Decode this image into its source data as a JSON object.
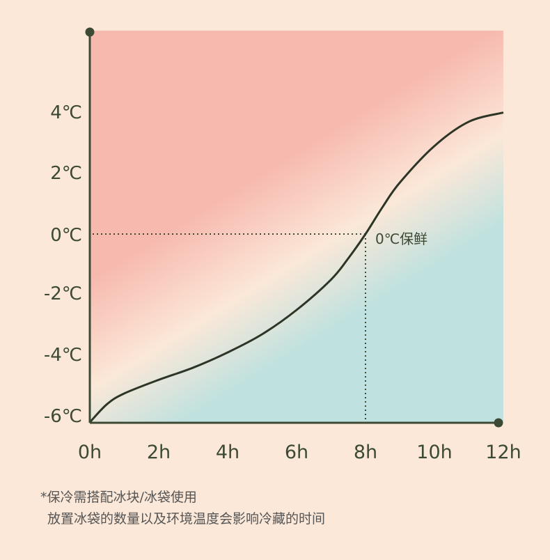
{
  "chart_data": {
    "type": "line",
    "title": "",
    "xlabel": "",
    "ylabel": "",
    "x_ticks": [
      "0h",
      "2h",
      "4h",
      "6h",
      "8h",
      "10h",
      "12h"
    ],
    "y_ticks": [
      "4℃",
      "2℃",
      "0℃",
      "-2℃",
      "-4℃",
      "-6℃"
    ],
    "xlim": [
      0,
      12
    ],
    "ylim": [
      -6.2,
      6.3
    ],
    "series": [
      {
        "name": "",
        "x": [
          0,
          0.5,
          1,
          2,
          3,
          4,
          5,
          6,
          7,
          7.5,
          8,
          8.5,
          9,
          10,
          11,
          12
        ],
        "y": [
          -6.2,
          -5.6,
          -5.25,
          -4.8,
          -4.4,
          -3.9,
          -3.3,
          -2.5,
          -1.5,
          -0.8,
          0.0,
          0.9,
          1.7,
          2.9,
          3.7,
          4.0
        ]
      }
    ],
    "annotations": [
      {
        "text": "0℃保鲜",
        "x": 8,
        "y": 0
      }
    ],
    "colors": {
      "warm_zone": "#f7b8ae",
      "cool_zone": "#bfe1df",
      "background": "#fbe8d8",
      "axis": "#3c4a35",
      "curve": "#2d3626"
    }
  },
  "notes": {
    "line1": "*保冷需搭配冰块/冰袋使用",
    "line2": "放置冰袋的数量以及环境温度会影响冷藏的时间"
  }
}
